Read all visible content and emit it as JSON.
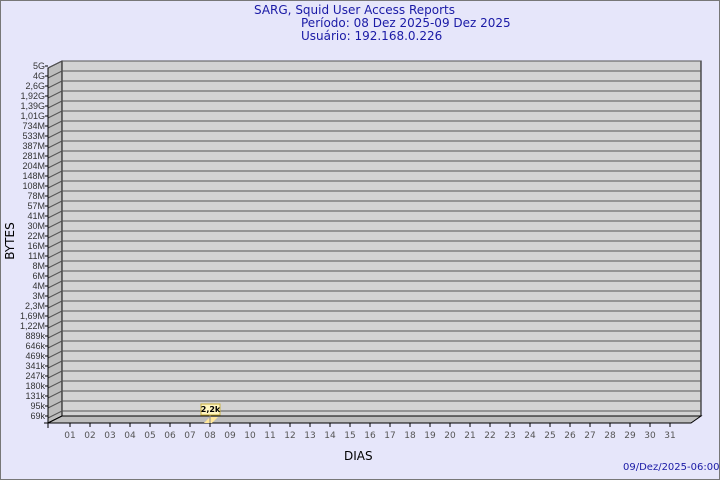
{
  "chart_data": {
    "type": "bar",
    "title": "SARG, Squid User Access Reports",
    "subtitle_period": "Período: 08 Dez 2025-09 Dez 2025",
    "subtitle_user": "Usuário: 192.168.0.226",
    "xlabel": "DIAS",
    "ylabel": "BYTES",
    "y_scale": "log",
    "y_tick_labels": [
      "5G",
      "4G",
      "2,6G",
      "1,92G",
      "1,39G",
      "1,01G",
      "734M",
      "533M",
      "387M",
      "281M",
      "204M",
      "148M",
      "108M",
      "78M",
      "57M",
      "41M",
      "30M",
      "22M",
      "16M",
      "11M",
      "8M",
      "6M",
      "4M",
      "3M",
      "2,3M",
      "1,69M",
      "1,22M",
      "889k",
      "646k",
      "469k",
      "341k",
      "247k",
      "180k",
      "131k",
      "95k",
      "69k"
    ],
    "categories": [
      "01",
      "02",
      "03",
      "04",
      "05",
      "06",
      "07",
      "08",
      "09",
      "10",
      "11",
      "12",
      "13",
      "14",
      "15",
      "16",
      "17",
      "18",
      "19",
      "20",
      "21",
      "22",
      "23",
      "24",
      "25",
      "26",
      "27",
      "28",
      "29",
      "30",
      "31"
    ],
    "bars": [
      {
        "category": "08",
        "value": 2200,
        "label": "2,2k"
      }
    ],
    "grid": true,
    "colors": {
      "background": "#e6e6fa",
      "plot": "#d3d3d3",
      "bar": "#ffe79a",
      "title": "#1a1aa6"
    }
  },
  "footer_timestamp": "09/Dez/2025-06:00"
}
